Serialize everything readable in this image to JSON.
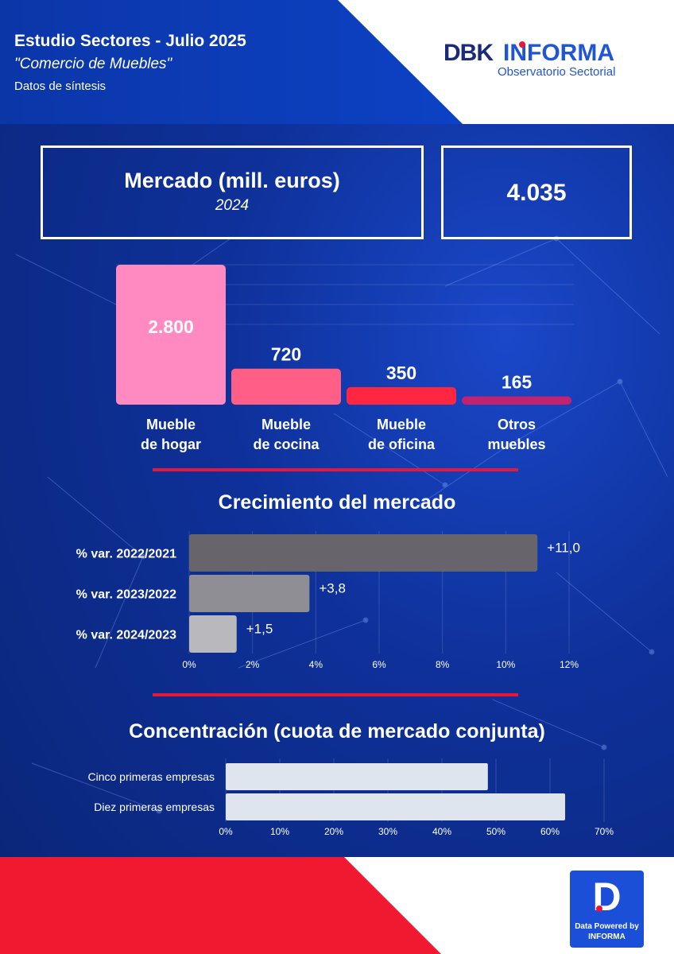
{
  "header": {
    "title": "Estudio Sectores - Julio 2025",
    "subtitle": "\"Comercio de Muebles\"",
    "caption": "Datos de síntesis"
  },
  "logo": {
    "brand_a": "DBK",
    "brand_b": "INFORMA",
    "tagline": "Observatorio Sectorial"
  },
  "market_box": {
    "label": "Mercado (mill. euros)",
    "year": "2024",
    "value": "4.035"
  },
  "section_titles": {
    "growth": "Crecimiento del mercado",
    "concentration": "Concentración (cuota de mercado conjunta)"
  },
  "footer": {
    "badge_letter": "D",
    "badge_line1": "Data Powered by",
    "badge_line2": "INFORMA"
  },
  "colors": {
    "header_blue": "#0d47d1",
    "accent_red": "#e8173a",
    "bar_colors": [
      "#ff89c1",
      "#ff5f87",
      "#ff2642",
      "#c2226e"
    ],
    "growth_bar_colors": [
      "#67646b",
      "#8f8e95",
      "#b8b8bd"
    ],
    "concentration_bar": "#dfe5ee"
  },
  "chart_data": [
    {
      "type": "bar",
      "categories": [
        [
          "Mueble",
          "de hogar"
        ],
        [
          "Mueble",
          "de cocina"
        ],
        [
          "Mueble",
          "de oficina"
        ],
        [
          "Otros",
          "muebles"
        ]
      ],
      "values": [
        2800,
        720,
        350,
        165
      ],
      "value_labels": [
        "2.800",
        "720",
        "350",
        "165"
      ],
      "ylim": [
        0,
        2800
      ],
      "grid": true
    },
    {
      "type": "bar",
      "orientation": "horizontal",
      "title": "Crecimiento del mercado",
      "categories": [
        "% var. 2022/2021",
        "% var. 2023/2022",
        "% var. 2024/2023"
      ],
      "values": [
        11.0,
        3.8,
        1.5
      ],
      "value_labels": [
        "+11,0",
        "+3,8",
        "+1,5"
      ],
      "xlim": [
        0,
        12
      ],
      "xticks": [
        "0%",
        "2%",
        "4%",
        "6%",
        "8%",
        "10%",
        "12%"
      ],
      "grid": true
    },
    {
      "type": "bar",
      "orientation": "horizontal",
      "title": "Concentración (cuota de mercado conjunta)",
      "categories": [
        "Cinco primeras empresas",
        "Diez primeras empresas"
      ],
      "values": [
        48.5,
        62.8
      ],
      "xlim": [
        0,
        70
      ],
      "xticks": [
        "0%",
        "10%",
        "20%",
        "30%",
        "40%",
        "50%",
        "60%",
        "70%"
      ],
      "grid": true
    }
  ]
}
